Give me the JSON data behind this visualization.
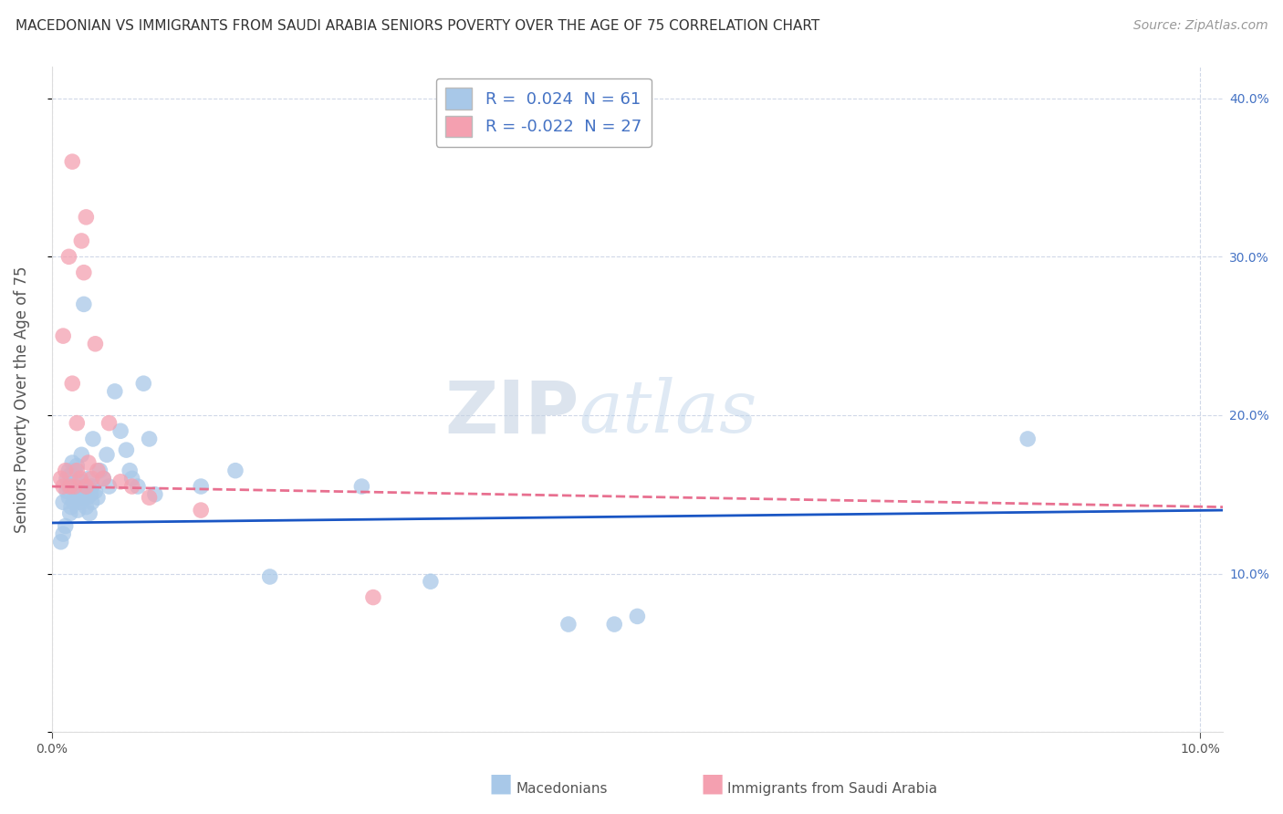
{
  "title": "MACEDONIAN VS IMMIGRANTS FROM SAUDI ARABIA SENIORS POVERTY OVER THE AGE OF 75 CORRELATION CHART",
  "source": "Source: ZipAtlas.com",
  "ylabel": "Seniors Poverty Over the Age of 75",
  "xlim": [
    0.0,
    0.102
  ],
  "ylim": [
    0.0,
    0.42
  ],
  "macedonian_R": 0.024,
  "macedonian_N": 61,
  "saudi_R": -0.022,
  "saudi_N": 27,
  "macedonian_color": "#a8c8e8",
  "saudi_color": "#f4a0b0",
  "macedonian_line_color": "#1a56c4",
  "saudi_line_color": "#e87090",
  "watermark_zip": "ZIP",
  "watermark_atlas": "atlas",
  "background_color": "#ffffff",
  "grid_color": "#d0d8e8",
  "macedonians_x": [
    0.0008,
    0.001,
    0.001,
    0.0012,
    0.0013,
    0.0013,
    0.0015,
    0.0015,
    0.0015,
    0.0016,
    0.0016,
    0.0017,
    0.0018,
    0.0018,
    0.0019,
    0.002,
    0.002,
    0.002,
    0.0022,
    0.0022,
    0.0023,
    0.0025,
    0.0025,
    0.0026,
    0.0026,
    0.0027,
    0.0028,
    0.0028,
    0.003,
    0.003,
    0.0031,
    0.0032,
    0.0033,
    0.0034,
    0.0035,
    0.0035,
    0.0036,
    0.0038,
    0.004,
    0.0042,
    0.0045,
    0.0048,
    0.005,
    0.0055,
    0.006,
    0.0065,
    0.0068,
    0.007,
    0.0075,
    0.008,
    0.0085,
    0.009,
    0.013,
    0.016,
    0.019,
    0.027,
    0.033,
    0.045,
    0.049,
    0.051,
    0.085
  ],
  "macedonians_y": [
    0.12,
    0.145,
    0.125,
    0.13,
    0.152,
    0.16,
    0.148,
    0.155,
    0.165,
    0.138,
    0.162,
    0.142,
    0.155,
    0.17,
    0.145,
    0.148,
    0.158,
    0.165,
    0.152,
    0.168,
    0.14,
    0.15,
    0.145,
    0.158,
    0.175,
    0.148,
    0.152,
    0.27,
    0.142,
    0.155,
    0.148,
    0.16,
    0.138,
    0.15,
    0.145,
    0.155,
    0.185,
    0.152,
    0.148,
    0.165,
    0.16,
    0.175,
    0.155,
    0.215,
    0.19,
    0.178,
    0.165,
    0.16,
    0.155,
    0.22,
    0.185,
    0.15,
    0.155,
    0.165,
    0.098,
    0.155,
    0.095,
    0.068,
    0.068,
    0.073,
    0.185
  ],
  "saudi_x": [
    0.0008,
    0.001,
    0.001,
    0.0012,
    0.0015,
    0.0016,
    0.0018,
    0.0018,
    0.002,
    0.0022,
    0.0022,
    0.0025,
    0.0026,
    0.0028,
    0.003,
    0.003,
    0.0032,
    0.0035,
    0.0038,
    0.004,
    0.0045,
    0.005,
    0.006,
    0.007,
    0.0085,
    0.013,
    0.028
  ],
  "saudi_y": [
    0.16,
    0.155,
    0.25,
    0.165,
    0.3,
    0.155,
    0.22,
    0.36,
    0.155,
    0.165,
    0.195,
    0.16,
    0.31,
    0.29,
    0.155,
    0.325,
    0.17,
    0.16,
    0.245,
    0.165,
    0.16,
    0.195,
    0.158,
    0.155,
    0.148,
    0.14,
    0.085
  ],
  "mac_line_x": [
    0.0,
    0.102
  ],
  "mac_line_y": [
    0.132,
    0.14
  ],
  "sau_line_x": [
    0.0,
    0.102
  ],
  "sau_line_y": [
    0.155,
    0.142
  ]
}
